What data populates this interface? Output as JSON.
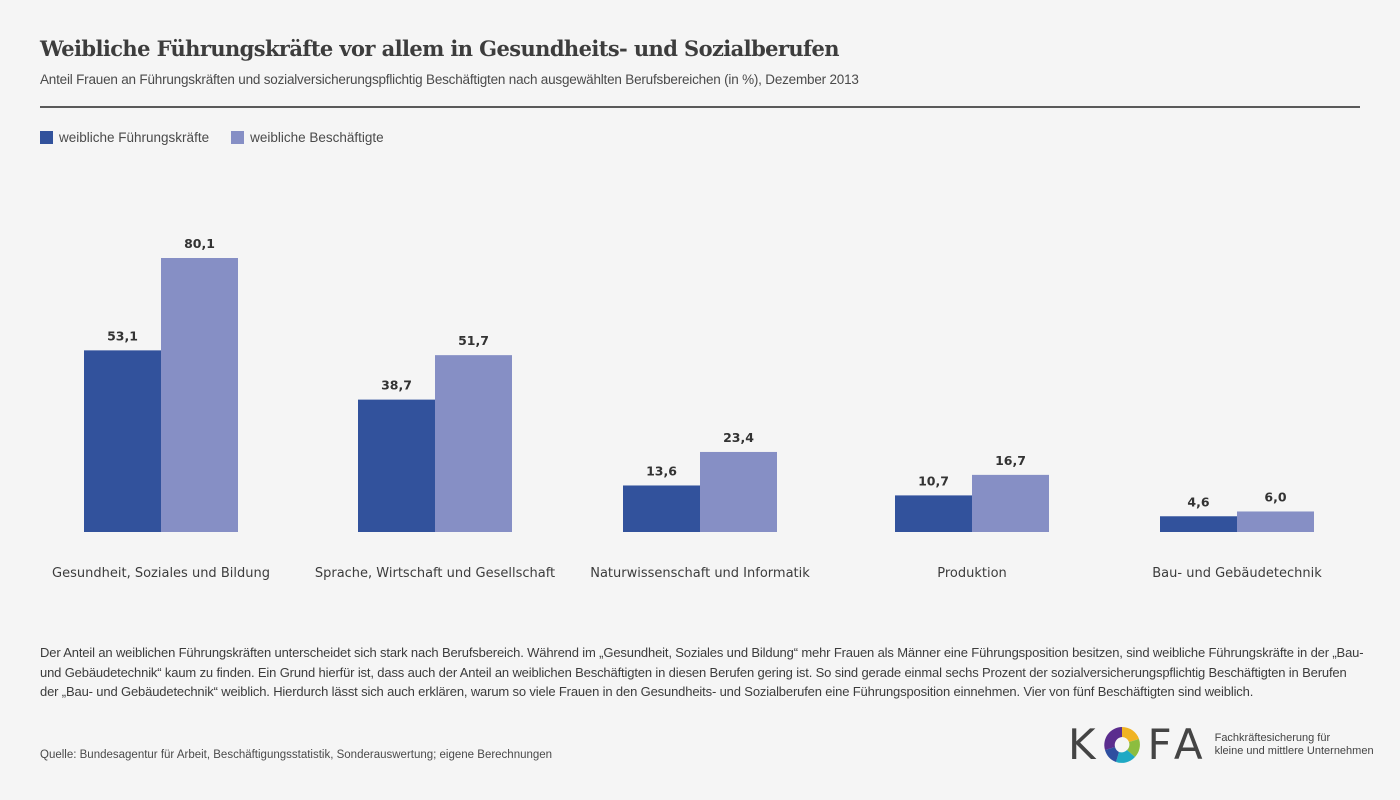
{
  "header": {
    "title": "Weibliche Führungskräfte vor allem in Gesundheits- und Sozialberufen",
    "subtitle": "Anteil Frauen an Führungskräften und sozialversicherungspflichtig Beschäftigten nach ausgewählten Berufsbereichen (in %), Dezember 2013"
  },
  "chart_data": {
    "type": "bar",
    "title": "Weibliche Führungskräfte vor allem in Gesundheits- und Sozialberufen",
    "subtitle": "Anteil Frauen an Führungskräften und sozialversicherungspflichtig Beschäftigten nach ausgewählten Berufsbereichen (in %), Dezember 2013",
    "xlabel": "",
    "ylabel": "",
    "ylim": [
      0,
      80.1
    ],
    "grid": false,
    "legend_position": "top-left",
    "categories": [
      "Gesundheit, Soziales und Bildung",
      "Sprache, Wirtschaft und Gesellschaft",
      "Naturwissenschaft und Informatik",
      "Produktion",
      "Bau- und Gebäudetechnik"
    ],
    "series": [
      {
        "name": "weibliche Führungskräfte",
        "color": "#32529c",
        "values": [
          53.1,
          38.7,
          13.6,
          10.7,
          4.6
        ],
        "labels": [
          "53,1",
          "38,7",
          "13,6",
          "10,7",
          "4,6"
        ]
      },
      {
        "name": "weibliche Beschäftigte",
        "color": "#868fc5",
        "values": [
          80.1,
          51.7,
          23.4,
          16.7,
          6.0
        ],
        "labels": [
          "80,1",
          "51,7",
          "23,4",
          "16,7",
          "6,0"
        ]
      }
    ]
  },
  "body": {
    "text": "Der Anteil an weiblichen Führungskräften unterscheidet sich stark nach Berufsbereich. Während im „Gesundheit, Soziales und Bildung“ mehr Frauen als Männer eine Führungsposition besitzen, sind weibliche Führungskräfte in der „Bau- und Gebäudetechnik“ kaum zu finden. Ein Grund hierfür ist, dass auch der Anteil an weiblichen Beschäftigten in diesen Berufen gering ist. So sind gerade einmal sechs Prozent der sozialversicherungspflichtig Beschäftigten in Berufen der „Bau- und Gebäudetechnik“ weiblich. Hierdurch lässt sich auch erklären, warum so viele Frauen in den Gesundheits- und Sozialberufen eine Führungsposition einnehmen. Vier von fünf Beschäftigten sind weiblich."
  },
  "footer": {
    "source": "Quelle: Bundesagentur für Arbeit, Beschäftigungsstatistik, Sonderauswertung; eigene Berechnungen"
  },
  "logo": {
    "letter_k": "K",
    "letters_fa": "FA",
    "tagline_1": "Fachkräftesicherung für",
    "tagline_2": "kleine und mittlere Unternehmen",
    "icon": "kofa-ring-icon"
  }
}
